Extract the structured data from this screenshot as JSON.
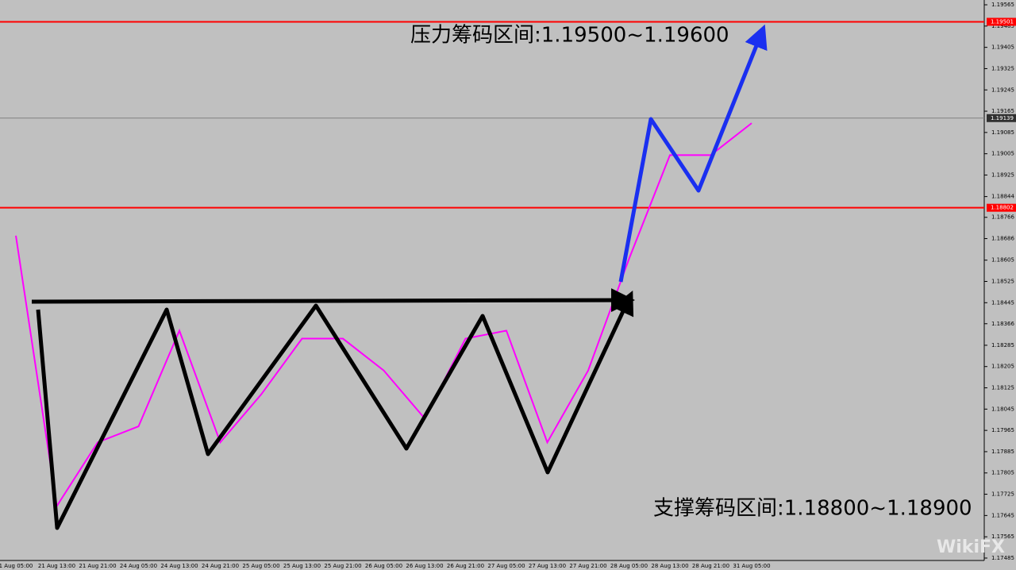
{
  "chart_data": {
    "type": "line",
    "annotations": [
      "压力筹码区间:1.19500~1.19600",
      "支撑筹码区间:1.18800~1.18900"
    ],
    "watermark": "WikiFX",
    "categories": [
      "1 Aug 05:00",
      "21 Aug 13:00",
      "21 Aug 21:00",
      "24 Aug 05:00",
      "24 Aug 13:00",
      "24 Aug 21:00",
      "25 Aug 05:00",
      "25 Aug 13:00",
      "25 Aug 21:00",
      "26 Aug 05:00",
      "26 Aug 13:00",
      "26 Aug 21:00",
      "27 Aug 05:00",
      "27 Aug 13:00",
      "27 Aug 21:00",
      "28 Aug 05:00",
      "28 Aug 13:00",
      "28 Aug 21:00",
      "31 Aug 05:00"
    ],
    "series": [
      {
        "color": "#ff00ff",
        "values": [
          1.18697,
          1.1768,
          1.1792,
          1.1798,
          1.1834,
          1.1792,
          1.181,
          1.1831,
          1.1831,
          1.1819,
          1.1801,
          1.1831,
          1.1834,
          1.1792,
          1.1819,
          1.1861,
          1.19,
          1.19,
          1.1912
        ]
      }
    ],
    "hlines": [
      {
        "value": 1.19501,
        "color": "#ff0000"
      },
      {
        "value": 1.19139,
        "color": "#808080"
      },
      {
        "value": 1.18802,
        "color": "#ff0000"
      }
    ],
    "ylim": [
      1.17467,
      1.19583
    ],
    "yticks": [
      1.19565,
      1.19485,
      1.19405,
      1.19325,
      1.19245,
      1.19165,
      1.19085,
      1.19005,
      1.18925,
      1.18844,
      1.18766,
      1.18686,
      1.18605,
      1.18525,
      1.18445,
      1.18366,
      1.18285,
      1.18205,
      1.18125,
      1.18045,
      1.17965,
      1.17885,
      1.17805,
      1.17725,
      1.17645,
      1.17565,
      1.17485
    ]
  }
}
